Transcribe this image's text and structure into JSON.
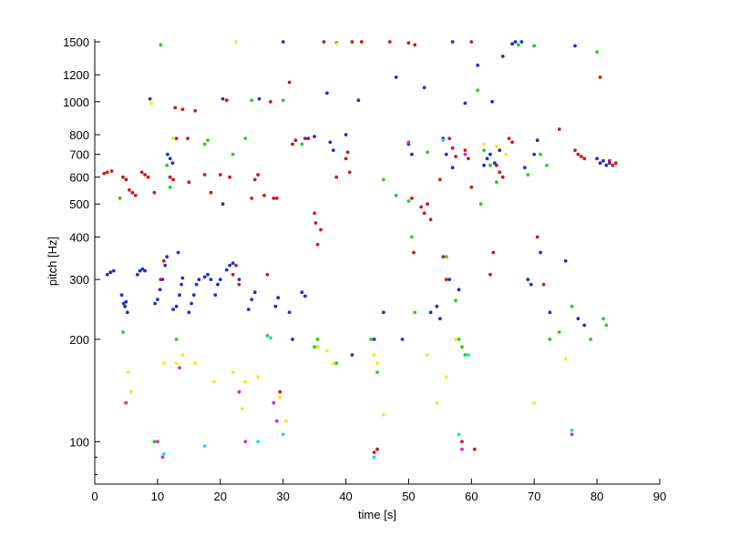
{
  "chart_data": {
    "type": "scatter",
    "title": "",
    "xlabel": "time [s]",
    "ylabel": "pitch [Hz]",
    "xlim": [
      0,
      90
    ],
    "ylim": [
      75,
      1500
    ],
    "yscale": "log",
    "grid": false,
    "legend": "none",
    "x_ticks": [
      0,
      10,
      20,
      30,
      40,
      50,
      60,
      70,
      80,
      90
    ],
    "x_tick_labels": [
      "0",
      "10",
      "20",
      "30",
      "40",
      "50",
      "60",
      "70",
      "80",
      "90"
    ],
    "y_ticks": [
      100,
      200,
      300,
      400,
      500,
      600,
      700,
      800,
      1000,
      1200,
      1500
    ],
    "y_tick_labels": [
      "100",
      "200",
      "300",
      "400",
      "500",
      "600",
      "700",
      "800",
      "1000",
      "1200",
      "1500"
    ],
    "y_minor_ticks": [
      80,
      90
    ],
    "series": [
      {
        "color": "#1f2fd0",
        "points": [
          [
            2,
            310
          ],
          [
            2.5,
            315
          ],
          [
            3,
            318
          ],
          [
            4.3,
            270
          ],
          [
            4.6,
            255
          ],
          [
            4.8,
            250
          ],
          [
            5.2,
            240
          ],
          [
            5,
            258
          ],
          [
            6.8,
            310
          ],
          [
            7.2,
            318
          ],
          [
            7.6,
            322
          ],
          [
            8,
            318
          ],
          [
            8.8,
            1020
          ],
          [
            9.6,
            255
          ],
          [
            10,
            262
          ],
          [
            10.4,
            280
          ],
          [
            10.8,
            300
          ],
          [
            11.2,
            330
          ],
          [
            11.5,
            350
          ],
          [
            11.6,
            700
          ],
          [
            12,
            680
          ],
          [
            12.4,
            660
          ],
          [
            12.5,
            245
          ],
          [
            13,
            250
          ],
          [
            13.3,
            360
          ],
          [
            13.5,
            270
          ],
          [
            13.8,
            290
          ],
          [
            14,
            303
          ],
          [
            15,
            240
          ],
          [
            15.4,
            255
          ],
          [
            15.8,
            270
          ],
          [
            16.2,
            290
          ],
          [
            16.6,
            300
          ],
          [
            17.5,
            305
          ],
          [
            18,
            310
          ],
          [
            18.5,
            300
          ],
          [
            19.2,
            270
          ],
          [
            19.6,
            290
          ],
          [
            20,
            300
          ],
          [
            20.4,
            1020
          ],
          [
            20.4,
            500
          ],
          [
            21,
            320
          ],
          [
            21.5,
            330
          ],
          [
            22,
            335
          ],
          [
            23,
            300
          ],
          [
            24.5,
            245
          ],
          [
            25,
            262
          ],
          [
            25.5,
            275
          ],
          [
            26.2,
            1020
          ],
          [
            28.8,
            250
          ],
          [
            29.2,
            265
          ],
          [
            30,
            1500
          ],
          [
            31,
            240
          ],
          [
            31.5,
            200
          ],
          [
            33,
            275
          ],
          [
            33.5,
            268
          ],
          [
            34,
            780
          ],
          [
            35,
            790
          ],
          [
            35.5,
            190
          ],
          [
            37,
            1060
          ],
          [
            37.5,
            760
          ],
          [
            38,
            720
          ],
          [
            40,
            800
          ],
          [
            41,
            180
          ],
          [
            42,
            1010
          ],
          [
            44.5,
            200
          ],
          [
            46,
            240
          ],
          [
            48,
            1180
          ],
          [
            49,
            200
          ],
          [
            50,
            750
          ],
          [
            50.5,
            700
          ],
          [
            52.5,
            1100
          ],
          [
            53.5,
            240
          ],
          [
            54.5,
            250
          ],
          [
            55,
            230
          ],
          [
            55.5,
            780
          ],
          [
            56,
            700
          ],
          [
            56.5,
            300
          ],
          [
            57,
            1500
          ],
          [
            57,
            640
          ],
          [
            58,
            280
          ],
          [
            59,
            990
          ],
          [
            61,
            1280
          ],
          [
            62,
            650
          ],
          [
            62.5,
            680
          ],
          [
            63,
            700
          ],
          [
            63.3,
            1000
          ],
          [
            63.7,
            660
          ],
          [
            64,
            650
          ],
          [
            64.5,
            720
          ],
          [
            65,
            1360
          ],
          [
            66.5,
            1480
          ],
          [
            67,
            1500
          ],
          [
            68,
            1500
          ],
          [
            68.5,
            640
          ],
          [
            69,
            300
          ],
          [
            69.5,
            290
          ],
          [
            70,
            700
          ],
          [
            70.5,
            770
          ],
          [
            71,
            360
          ],
          [
            72.5,
            240
          ],
          [
            75,
            340
          ],
          [
            76.5,
            1460
          ],
          [
            77,
            230
          ],
          [
            78,
            220
          ],
          [
            80,
            680
          ],
          [
            80.5,
            660
          ],
          [
            81,
            670
          ],
          [
            81.5,
            650
          ],
          [
            82,
            660
          ]
        ]
      },
      {
        "color": "#d01818",
        "points": [
          [
            1.5,
            615
          ],
          [
            2,
            620
          ],
          [
            2.7,
            625
          ],
          [
            4.5,
            600
          ],
          [
            5,
            590
          ],
          [
            5.5,
            550
          ],
          [
            6,
            540
          ],
          [
            6.5,
            530
          ],
          [
            7.5,
            620
          ],
          [
            8,
            610
          ],
          [
            8.5,
            600
          ],
          [
            9.5,
            540
          ],
          [
            10.5,
            300
          ],
          [
            11,
            340
          ],
          [
            12,
            600
          ],
          [
            12.5,
            590
          ],
          [
            12.8,
            960
          ],
          [
            13,
            780
          ],
          [
            14,
            950
          ],
          [
            14.8,
            780
          ],
          [
            15,
            580
          ],
          [
            16,
            940
          ],
          [
            17.5,
            610
          ],
          [
            18.5,
            540
          ],
          [
            20,
            610
          ],
          [
            21,
            1010
          ],
          [
            21.5,
            600
          ],
          [
            22,
            310
          ],
          [
            22.5,
            330
          ],
          [
            23,
            290
          ],
          [
            25,
            520
          ],
          [
            25.5,
            590
          ],
          [
            26,
            610
          ],
          [
            27,
            530
          ],
          [
            27.5,
            310
          ],
          [
            28,
            1000
          ],
          [
            28.5,
            520
          ],
          [
            29,
            520
          ],
          [
            29.5,
            140
          ],
          [
            31,
            1140
          ],
          [
            31.5,
            750
          ],
          [
            32,
            770
          ],
          [
            33.5,
            780
          ],
          [
            35,
            470
          ],
          [
            35.2,
            440
          ],
          [
            35.5,
            380
          ],
          [
            36,
            420
          ],
          [
            36.5,
            1500
          ],
          [
            38.5,
            600
          ],
          [
            38.5,
            1490
          ],
          [
            40,
            680
          ],
          [
            40.3,
            710
          ],
          [
            40.6,
            620
          ],
          [
            41,
            1500
          ],
          [
            42.5,
            1500
          ],
          [
            44.5,
            93
          ],
          [
            45,
            95
          ],
          [
            47,
            1500
          ],
          [
            50,
            1490
          ],
          [
            50.5,
            520
          ],
          [
            50.8,
            360
          ],
          [
            51,
            1470
          ],
          [
            52,
            490
          ],
          [
            52.5,
            470
          ],
          [
            53,
            500
          ],
          [
            53.5,
            450
          ],
          [
            55,
            590
          ],
          [
            55.5,
            350
          ],
          [
            56,
            300
          ],
          [
            56.5,
            780
          ],
          [
            57,
            730
          ],
          [
            57.5,
            690
          ],
          [
            58.5,
            100
          ],
          [
            59,
            720
          ],
          [
            59.5,
            680
          ],
          [
            60,
            560
          ],
          [
            60,
            1500
          ],
          [
            60.5,
            95
          ],
          [
            63,
            310
          ],
          [
            63.5,
            360
          ],
          [
            64,
            650
          ],
          [
            64.5,
            620
          ],
          [
            65,
            600
          ],
          [
            66,
            780
          ],
          [
            66.5,
            760
          ],
          [
            70.5,
            400
          ],
          [
            71.5,
            290
          ],
          [
            74,
            830
          ],
          [
            76.5,
            720
          ],
          [
            77,
            700
          ],
          [
            77.5,
            690
          ],
          [
            78,
            680
          ],
          [
            80.5,
            1180
          ],
          [
            82,
            670
          ],
          [
            82.5,
            650
          ],
          [
            83,
            660
          ]
        ]
      },
      {
        "color": "#22d022",
        "points": [
          [
            4,
            520
          ],
          [
            4.5,
            210
          ],
          [
            9.5,
            100
          ],
          [
            10.5,
            1470
          ],
          [
            11.5,
            650
          ],
          [
            12,
            560
          ],
          [
            13,
            200
          ],
          [
            17.5,
            750
          ],
          [
            18,
            770
          ],
          [
            22,
            700
          ],
          [
            24,
            780
          ],
          [
            25,
            1010
          ],
          [
            27.5,
            205
          ],
          [
            30,
            1010
          ],
          [
            33,
            750
          ],
          [
            35,
            190
          ],
          [
            35.5,
            200
          ],
          [
            38.5,
            170
          ],
          [
            44,
            200
          ],
          [
            45,
            160
          ],
          [
            46,
            590
          ],
          [
            48,
            530
          ],
          [
            50,
            510
          ],
          [
            50.5,
            400
          ],
          [
            51,
            240
          ],
          [
            53,
            710
          ],
          [
            56,
            350
          ],
          [
            57.5,
            260
          ],
          [
            58,
            200
          ],
          [
            58.5,
            190
          ],
          [
            59,
            180
          ],
          [
            61,
            1080
          ],
          [
            61.5,
            500
          ],
          [
            62,
            720
          ],
          [
            63,
            650
          ],
          [
            64,
            580
          ],
          [
            67.5,
            1470
          ],
          [
            69,
            610
          ],
          [
            70,
            1460
          ],
          [
            71,
            700
          ],
          [
            72,
            650
          ],
          [
            72.5,
            200
          ],
          [
            74,
            210
          ],
          [
            76,
            250
          ],
          [
            79,
            200
          ],
          [
            80,
            1400
          ],
          [
            81,
            230
          ],
          [
            81.5,
            220
          ]
        ]
      },
      {
        "color": "#f5e91a",
        "points": [
          [
            4.7,
            130
          ],
          [
            5.3,
            160
          ],
          [
            5.8,
            140
          ],
          [
            9,
            990
          ],
          [
            11,
            170
          ],
          [
            12.5,
            780
          ],
          [
            13,
            170
          ],
          [
            14,
            180
          ],
          [
            16,
            170
          ],
          [
            19,
            150
          ],
          [
            22,
            160
          ],
          [
            22.5,
            1500
          ],
          [
            23.5,
            125
          ],
          [
            24,
            150
          ],
          [
            26,
            155
          ],
          [
            29.5,
            135
          ],
          [
            30.5,
            115
          ],
          [
            35.5,
            190
          ],
          [
            37,
            185
          ],
          [
            38,
            170
          ],
          [
            38.5,
            1480
          ],
          [
            44.5,
            180
          ],
          [
            45,
            170
          ],
          [
            46,
            120
          ],
          [
            53,
            180
          ],
          [
            54.5,
            130
          ],
          [
            56,
            155
          ],
          [
            57.5,
            200
          ],
          [
            62,
            750
          ],
          [
            64,
            740
          ],
          [
            65.5,
            700
          ],
          [
            70,
            130
          ],
          [
            75,
            175
          ]
        ]
      },
      {
        "color": "#e020e0",
        "points": [
          [
            5,
            130
          ],
          [
            10,
            100
          ],
          [
            10.8,
            90
          ],
          [
            13.5,
            165
          ],
          [
            23,
            140
          ],
          [
            24,
            100
          ],
          [
            28.5,
            130
          ],
          [
            29,
            115
          ],
          [
            50,
            760
          ],
          [
            58.5,
            95
          ],
          [
            59,
            700
          ],
          [
            76,
            105
          ]
        ]
      },
      {
        "color": "#20d8e8",
        "points": [
          [
            11,
            92
          ],
          [
            17.5,
            97
          ],
          [
            26,
            100
          ],
          [
            28,
            202
          ],
          [
            30,
            105
          ],
          [
            44.5,
            90
          ],
          [
            55.5,
            770
          ],
          [
            58,
            105
          ],
          [
            59.5,
            180
          ],
          [
            76,
            108
          ]
        ]
      }
    ]
  }
}
